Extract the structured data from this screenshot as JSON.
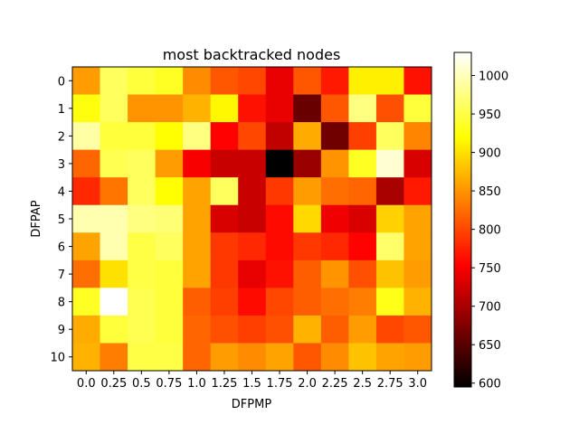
{
  "chart_data": {
    "type": "heatmap",
    "title": "most backtracked nodes",
    "xlabel": "DFPMP",
    "ylabel": "DFPAP",
    "x_categories": [
      "0.0",
      "0.25",
      "0.5",
      "0.75",
      "1.0",
      "1.25",
      "1.5",
      "1.75",
      "2.0",
      "2.25",
      "2.5",
      "2.75",
      "3.0"
    ],
    "y_categories": [
      "0",
      "1",
      "2",
      "3",
      "4",
      "5",
      "6",
      "7",
      "8",
      "9",
      "10"
    ],
    "values": [
      [
        855,
        960,
        945,
        935,
        845,
        810,
        800,
        740,
        810,
        770,
        910,
        910,
        765
      ],
      [
        925,
        960,
        850,
        850,
        870,
        915,
        765,
        740,
        660,
        810,
        975,
        805,
        945
      ],
      [
        990,
        945,
        945,
        920,
        975,
        755,
        800,
        715,
        865,
        665,
        795,
        960,
        840
      ],
      [
        820,
        955,
        960,
        855,
        750,
        720,
        720,
        595,
        690,
        850,
        935,
        1010,
        730
      ],
      [
        780,
        830,
        960,
        920,
        860,
        960,
        720,
        790,
        855,
        825,
        820,
        700,
        770
      ],
      [
        995,
        995,
        975,
        970,
        860,
        730,
        720,
        760,
        895,
        745,
        730,
        890,
        860
      ],
      [
        860,
        995,
        950,
        960,
        860,
        790,
        780,
        760,
        790,
        780,
        755,
        965,
        860
      ],
      [
        825,
        900,
        950,
        945,
        860,
        790,
        740,
        765,
        815,
        850,
        805,
        880,
        855
      ],
      [
        935,
        1030,
        955,
        945,
        815,
        795,
        760,
        800,
        815,
        825,
        835,
        930,
        870
      ],
      [
        865,
        945,
        955,
        945,
        820,
        805,
        795,
        805,
        870,
        815,
        855,
        800,
        810
      ],
      [
        870,
        835,
        950,
        950,
        820,
        855,
        845,
        860,
        810,
        845,
        880,
        860,
        855
      ]
    ],
    "colormap": "hot",
    "vmin": 595,
    "vmax": 1030,
    "colorbar_ticks": [
      600,
      650,
      700,
      750,
      800,
      850,
      900,
      950,
      1000
    ]
  }
}
